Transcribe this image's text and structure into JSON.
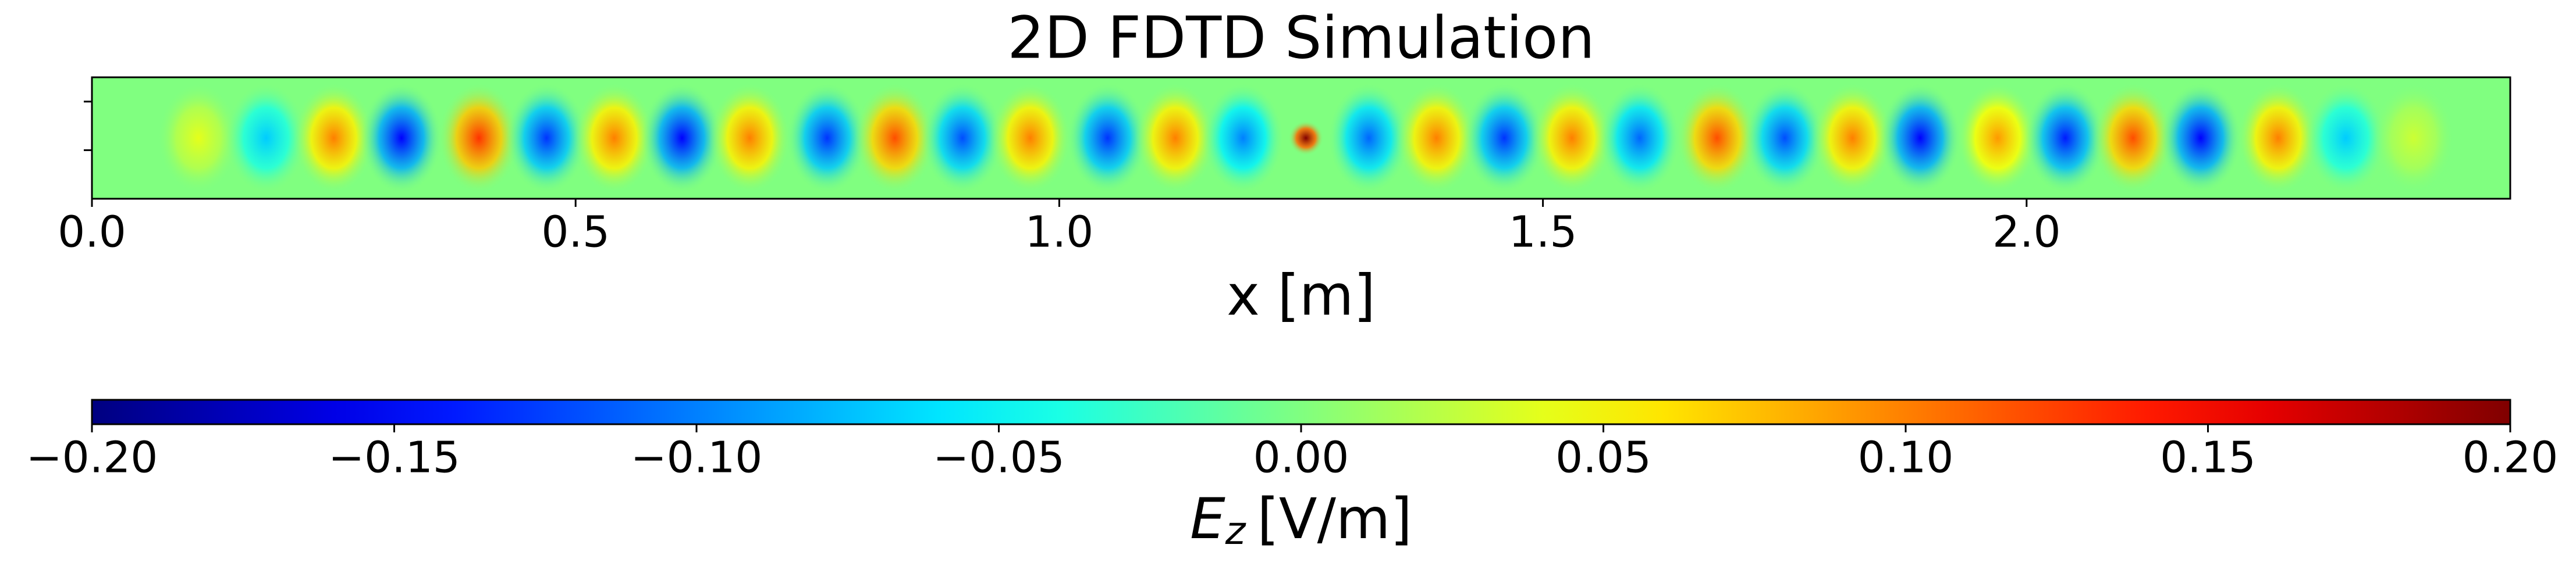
{
  "chart_data": {
    "type": "heatmap",
    "title": "2D FDTD Simulation",
    "xlabel": "x [m]",
    "xlim": [
      0,
      2.5
    ],
    "xticks": [
      {
        "value": 0,
        "label": "0.0"
      },
      0.5,
      {
        "value": 1,
        "label": "1.0"
      },
      1.5,
      {
        "value": 2,
        "label": "2.0"
      }
    ],
    "ylim": [
      0,
      0.125
    ],
    "yticks": [
      0.05,
      0.1
    ],
    "x": [
      0.11,
      0.18,
      0.25,
      0.32,
      0.4,
      0.47,
      0.54,
      0.61,
      0.68,
      0.76,
      0.83,
      0.9,
      0.97,
      1.05,
      1.12,
      1.19,
      1.255,
      1.32,
      1.39,
      1.46,
      1.53,
      1.6,
      1.68,
      1.75,
      1.82,
      1.89,
      1.97,
      2.04,
      2.11,
      2.18,
      2.26,
      2.33,
      2.4
    ],
    "values": [
      0.04,
      -0.07,
      0.1,
      -0.15,
      0.13,
      -0.13,
      0.1,
      -0.15,
      0.1,
      -0.13,
      0.12,
      -0.12,
      0.1,
      -0.13,
      0.1,
      -0.1,
      0.2,
      -0.11,
      0.1,
      -0.13,
      0.1,
      -0.11,
      0.12,
      -0.12,
      0.1,
      -0.15,
      0.09,
      -0.14,
      0.12,
      -0.15,
      0.1,
      -0.07,
      0.03
    ],
    "colormap": "jet",
    "clim": [
      -0.2,
      0.2
    ],
    "cticks": [
      {
        "value": -0.2,
        "label": "−0.20"
      },
      {
        "value": -0.15,
        "label": "−0.15"
      },
      {
        "value": -0.1,
        "label": "−0.10"
      },
      {
        "value": -0.05,
        "label": "−0.05"
      },
      {
        "value": 0,
        "label": "0.00"
      },
      0.05,
      {
        "value": 0.1,
        "label": "0.10"
      },
      0.15,
      {
        "value": 0.2,
        "label": "0.20"
      }
    ],
    "colorbar_label": {
      "symbol": "E",
      "subscript": "z",
      "unit": "[V/m]"
    }
  }
}
